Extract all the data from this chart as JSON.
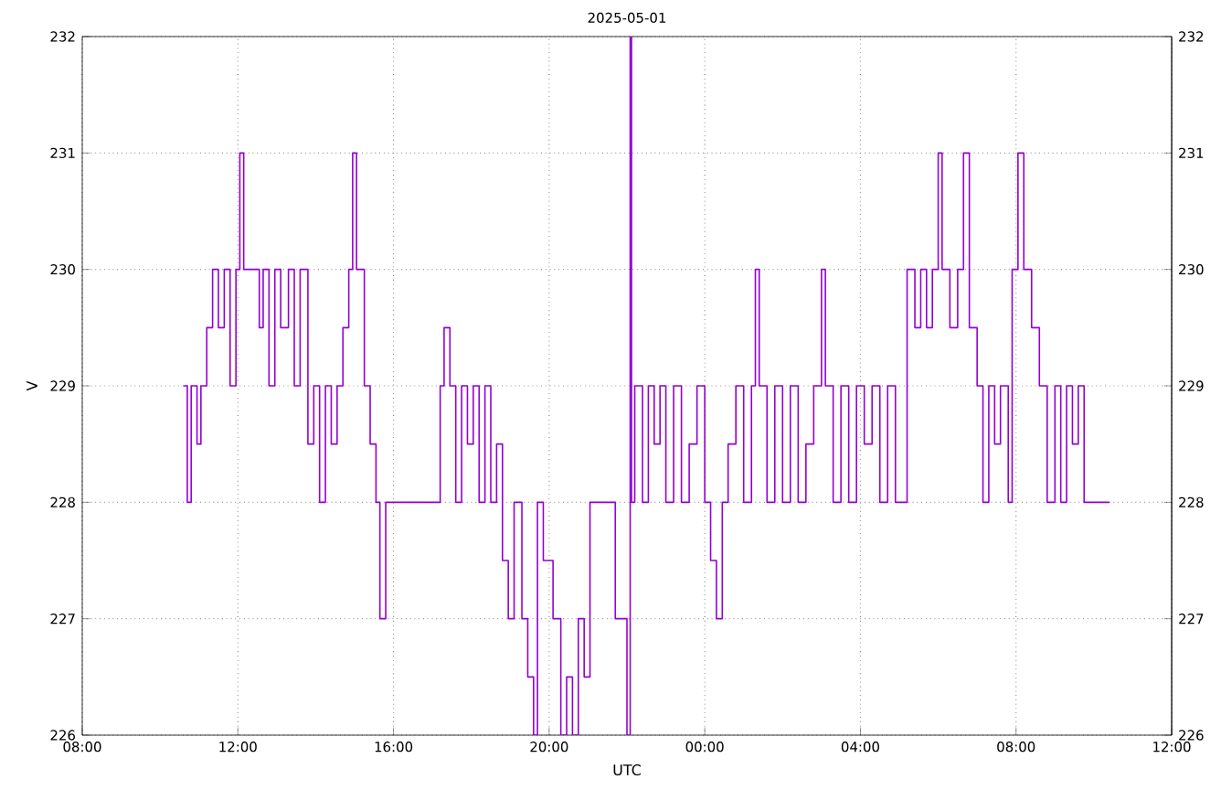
{
  "chart_data": {
    "type": "step",
    "title": "2025-05-01",
    "xlabel": "UTC",
    "ylabel": "V",
    "xlim": [
      "2025-05-01T08:00",
      "2025-05-02T12:00"
    ],
    "xticks": [
      {
        "value": "2025-05-01T08:00",
        "label": "08:00"
      },
      {
        "value": "2025-05-01T12:00",
        "label": "12:00"
      },
      {
        "value": "2025-05-01T16:00",
        "label": "16:00"
      },
      {
        "value": "2025-05-01T20:00",
        "label": "20:00"
      },
      {
        "value": "2025-05-02T00:00",
        "label": "00:00"
      },
      {
        "value": "2025-05-02T04:00",
        "label": "04:00"
      },
      {
        "value": "2025-05-02T08:00",
        "label": "08:00"
      },
      {
        "value": "2025-05-02T12:00",
        "label": "12:00"
      }
    ],
    "ylim": [
      226,
      232
    ],
    "yticks": [
      226,
      227,
      228,
      229,
      230,
      231,
      232
    ],
    "y2lim": [
      226,
      232
    ],
    "y2ticks": [
      226,
      227,
      228,
      229,
      230,
      231,
      232
    ],
    "grid": true,
    "series": [
      {
        "color": "#9400d3",
        "x": [
          "2025-05-01T10:36",
          "2025-05-01T10:42",
          "2025-05-01T10:48",
          "2025-05-01T10:57",
          "2025-05-01T11:03",
          "2025-05-01T11:12",
          "2025-05-01T11:21",
          "2025-05-01T11:30",
          "2025-05-01T11:39",
          "2025-05-01T11:48",
          "2025-05-01T11:57",
          "2025-05-01T12:03",
          "2025-05-01T12:09",
          "2025-05-01T12:33",
          "2025-05-01T12:39",
          "2025-05-01T12:48",
          "2025-05-01T12:57",
          "2025-05-01T13:06",
          "2025-05-01T13:18",
          "2025-05-01T13:27",
          "2025-05-01T13:36",
          "2025-05-01T13:48",
          "2025-05-01T13:57",
          "2025-05-01T14:06",
          "2025-05-01T14:15",
          "2025-05-01T14:24",
          "2025-05-01T14:33",
          "2025-05-01T14:42",
          "2025-05-01T14:51",
          "2025-05-01T14:57",
          "2025-05-01T15:03",
          "2025-05-01T15:15",
          "2025-05-01T15:24",
          "2025-05-01T15:33",
          "2025-05-01T15:39",
          "2025-05-01T15:48",
          "2025-05-01T17:12",
          "2025-05-01T17:18",
          "2025-05-01T17:27",
          "2025-05-01T17:36",
          "2025-05-01T17:45",
          "2025-05-01T17:54",
          "2025-05-01T18:03",
          "2025-05-01T18:12",
          "2025-05-01T18:21",
          "2025-05-01T18:30",
          "2025-05-01T18:39",
          "2025-05-01T18:48",
          "2025-05-01T18:57",
          "2025-05-01T19:06",
          "2025-05-01T19:18",
          "2025-05-01T19:27",
          "2025-05-01T19:36",
          "2025-05-01T19:42",
          "2025-05-01T19:51",
          "2025-05-01T20:06",
          "2025-05-01T20:18",
          "2025-05-01T20:27",
          "2025-05-01T20:36",
          "2025-05-01T20:45",
          "2025-05-01T20:54",
          "2025-05-01T21:03",
          "2025-05-01T21:42",
          "2025-05-01T22:00",
          "2025-05-01T22:05",
          "2025-05-01T22:07",
          "2025-05-01T22:12",
          "2025-05-01T22:24",
          "2025-05-01T22:33",
          "2025-05-01T22:42",
          "2025-05-01T22:51",
          "2025-05-01T23:00",
          "2025-05-01T23:12",
          "2025-05-01T23:24",
          "2025-05-01T23:36",
          "2025-05-01T23:48",
          "2025-05-02T00:00",
          "2025-05-02T00:09",
          "2025-05-02T00:18",
          "2025-05-02T00:27",
          "2025-05-02T00:36",
          "2025-05-02T00:48",
          "2025-05-02T01:00",
          "2025-05-02T01:12",
          "2025-05-02T01:18",
          "2025-05-02T01:24",
          "2025-05-02T01:36",
          "2025-05-02T01:48",
          "2025-05-02T02:00",
          "2025-05-02T02:12",
          "2025-05-02T02:24",
          "2025-05-02T02:36",
          "2025-05-02T02:48",
          "2025-05-02T03:00",
          "2025-05-02T03:06",
          "2025-05-02T03:18",
          "2025-05-02T03:30",
          "2025-05-02T03:42",
          "2025-05-02T03:54",
          "2025-05-02T04:06",
          "2025-05-02T04:18",
          "2025-05-02T04:30",
          "2025-05-02T04:42",
          "2025-05-02T04:54",
          "2025-05-02T05:12",
          "2025-05-02T05:24",
          "2025-05-02T05:33",
          "2025-05-02T05:42",
          "2025-05-02T05:51",
          "2025-05-02T06:00",
          "2025-05-02T06:06",
          "2025-05-02T06:18",
          "2025-05-02T06:30",
          "2025-05-02T06:39",
          "2025-05-02T06:48",
          "2025-05-02T07:00",
          "2025-05-02T07:09",
          "2025-05-02T07:18",
          "2025-05-02T07:27",
          "2025-05-02T07:36",
          "2025-05-02T07:48",
          "2025-05-02T07:54",
          "2025-05-02T08:03",
          "2025-05-02T08:12",
          "2025-05-02T08:24",
          "2025-05-02T08:36",
          "2025-05-02T08:48",
          "2025-05-02T09:00",
          "2025-05-02T09:09",
          "2025-05-02T09:18",
          "2025-05-02T09:27",
          "2025-05-02T09:36",
          "2025-05-02T09:45",
          "2025-05-02T09:54",
          "2025-05-02T10:24"
        ],
        "values": [
          229,
          228,
          229,
          228.5,
          229,
          229.5,
          230,
          229.5,
          230,
          229,
          230,
          231,
          230,
          229.5,
          230,
          229,
          230,
          229.5,
          230,
          229,
          230,
          228.5,
          229,
          228,
          229,
          228.5,
          229,
          229.5,
          230,
          231,
          230,
          229,
          228.5,
          228,
          227,
          228,
          229,
          229.5,
          229,
          228,
          229,
          228.5,
          229,
          228,
          229,
          228,
          228.5,
          227.5,
          227,
          228,
          227,
          226.5,
          226,
          228,
          227.5,
          227,
          226,
          226.5,
          226,
          227,
          226.5,
          228,
          227,
          226,
          232,
          228,
          229,
          228,
          229,
          228.5,
          229,
          228,
          229,
          228,
          228.5,
          229,
          228,
          227.5,
          227,
          228,
          228.5,
          229,
          228,
          229,
          230,
          229,
          228,
          229,
          228,
          229,
          228,
          228.5,
          229,
          230,
          229,
          228,
          229,
          228,
          229,
          228.5,
          229,
          228,
          229,
          228,
          230,
          229.5,
          230,
          229.5,
          230,
          231,
          230,
          229.5,
          230,
          231,
          229.5,
          229,
          228,
          229,
          228.5,
          229,
          228,
          230,
          231,
          230,
          229.5,
          229,
          228,
          229,
          228,
          229,
          228.5,
          229,
          228,
          228,
          228
        ]
      }
    ]
  }
}
